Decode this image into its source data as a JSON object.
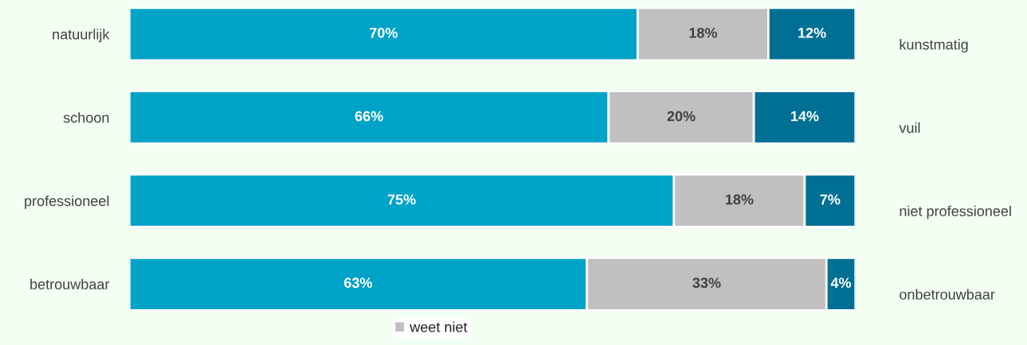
{
  "chart_data": {
    "type": "bar",
    "orientation": "horizontal",
    "stacked": true,
    "legend": "bottom",
    "grid": false,
    "tick_labels": "y",
    "categories": [
      "natuurlijk",
      "schoon",
      "professioneel",
      "betrouwbaar"
    ],
    "series": [
      {
        "color": "#00a3c8",
        "values": [
          70,
          66,
          75,
          63
        ],
        "value_labels": [
          "70%",
          "66%",
          "75%",
          "63%"
        ]
      },
      {
        "name": "weet niet",
        "color": "#c0c0c0",
        "values": [
          18,
          20,
          18,
          33
        ],
        "value_labels": [
          "18%",
          "20%",
          "18%",
          "33%"
        ]
      },
      {
        "color": "#006f94",
        "values": [
          12,
          14,
          7,
          4
        ],
        "value_labels": [
          "12%",
          "14%",
          "7%",
          "4%"
        ]
      }
    ],
    "annotations": [
      "kunstmatig",
      "vuil",
      "niet professioneel",
      "onbetrouwbaar"
    ]
  }
}
